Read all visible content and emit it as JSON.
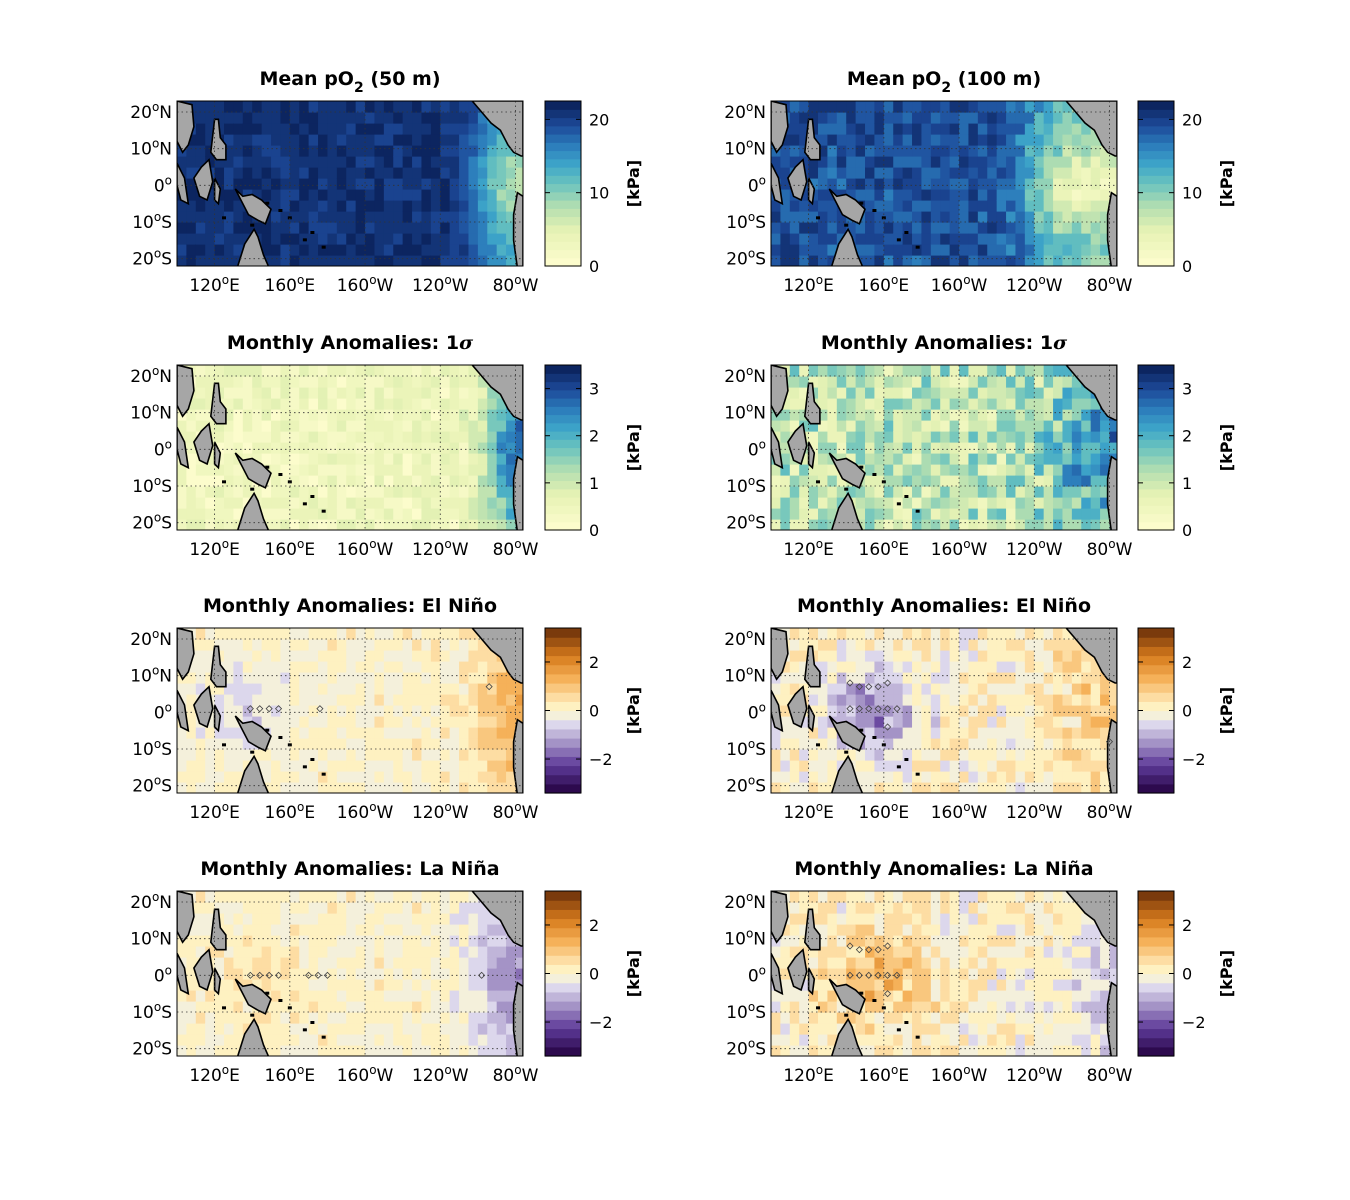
{
  "figure": {
    "titles": {
      "mean50": "Mean pO",
      "mean50_sub": "2",
      "mean50_tail": " (50 m)",
      "mean100": "Mean pO",
      "mean100_sub": "2",
      "mean100_tail": " (100 m)",
      "sigma": "Monthly Anomalies: 1",
      "sigma_symbol": "σ",
      "elnino": "Monthly Anomalies: El Niño",
      "lanina": "Monthly Anomalies: La Niña"
    },
    "unit_label": "[kPa]",
    "lat_ticks": [
      {
        "value": 20,
        "label": "20",
        "sup": "o",
        "hem": "N"
      },
      {
        "value": 10,
        "label": "10",
        "sup": "o",
        "hem": "N"
      },
      {
        "value": 0,
        "label": "0",
        "sup": "o",
        "hem": ""
      },
      {
        "value": -10,
        "label": "10",
        "sup": "o",
        "hem": "S"
      },
      {
        "value": -20,
        "label": "20",
        "sup": "o",
        "hem": "S"
      }
    ],
    "lon_ticks": [
      {
        "value": 120,
        "label": "120",
        "sup": "o",
        "hem": "E"
      },
      {
        "value": 160,
        "label": "160",
        "sup": "o",
        "hem": "E"
      },
      {
        "value": 200,
        "label": "160",
        "sup": "o",
        "hem": "W"
      },
      {
        "value": 240,
        "label": "120",
        "sup": "o",
        "hem": "W"
      },
      {
        "value": 280,
        "label": "80",
        "sup": "o",
        "hem": "W"
      }
    ]
  },
  "chart_data": [
    {
      "id": "mean50",
      "type": "heatmap",
      "title": "Mean pO2 (50 m)",
      "colorbar": {
        "label": "[kPa]",
        "ticks": [
          0,
          10,
          20
        ],
        "range": [
          0,
          22.5
        ],
        "palette": "sequential"
      },
      "xlim": [
        100,
        284
      ],
      "ylim": [
        -22,
        23
      ],
      "field": {
        "base": 21,
        "east_value": 8,
        "east_lon": 262,
        "east_width": 16,
        "equatorial_lat_width": 12,
        "noise": 1.2
      },
      "stipple": []
    },
    {
      "id": "mean100",
      "type": "heatmap",
      "title": "Mean pO2 (100 m)",
      "colorbar": {
        "label": "[kPa]",
        "ticks": [
          0,
          10,
          20
        ],
        "range": [
          0,
          22.5
        ],
        "palette": "sequential"
      },
      "xlim": [
        100,
        284
      ],
      "ylim": [
        -22,
        23
      ],
      "field": {
        "base": 19,
        "east_value": 3,
        "east_lon": 240,
        "east_width": 22,
        "equatorial_lat_width": 10,
        "noise": 2.2
      },
      "stipple": []
    },
    {
      "id": "sigma50",
      "type": "heatmap",
      "title": "Monthly Anomalies: 1σ",
      "colorbar": {
        "label": "[kPa]",
        "ticks": [
          0,
          1,
          2,
          3
        ],
        "range": [
          0,
          3.5
        ],
        "palette": "sequential"
      },
      "xlim": [
        100,
        284
      ],
      "ylim": [
        -22,
        23
      ],
      "field": {
        "base": 0.45,
        "east_value": 3.0,
        "east_lon": 268,
        "east_width": 16,
        "equatorial_lat_width": 12,
        "noise": 0.35
      },
      "stipple": []
    },
    {
      "id": "sigma100",
      "type": "heatmap",
      "title": "Monthly Anomalies: 1σ",
      "colorbar": {
        "label": "[kPa]",
        "ticks": [
          0,
          1,
          2,
          3
        ],
        "range": [
          0,
          3.5
        ],
        "palette": "sequential"
      },
      "xlim": [
        100,
        284
      ],
      "ylim": [
        -22,
        23
      ],
      "field": {
        "base": 1.1,
        "east_value": 2.6,
        "east_lon": 255,
        "east_width": 30,
        "equatorial_lat_width": 12,
        "noise": 0.7
      },
      "stipple": []
    },
    {
      "id": "elnino50",
      "type": "heatmap",
      "title": "Monthly Anomalies: El Niño",
      "colorbar": {
        "label": "[kPa]",
        "ticks": [
          -2,
          0,
          2
        ],
        "range": [
          -3.4,
          3.4
        ],
        "palette": "diverging"
      },
      "xlim": [
        100,
        284
      ],
      "ylim": [
        -22,
        23
      ],
      "field": {
        "base": 0.05,
        "east_value": 1.6,
        "east_lon": 265,
        "east_width": 20,
        "west_value": -0.5,
        "west_lon": 140,
        "equatorial_lat_width": 12,
        "noise": 0.35
      },
      "stipple": [
        [
          139,
          1
        ],
        [
          144,
          1
        ],
        [
          149,
          1
        ],
        [
          154,
          1
        ],
        [
          176,
          1
        ],
        [
          266,
          7
        ]
      ]
    },
    {
      "id": "elnino100",
      "type": "heatmap",
      "title": "Monthly Anomalies: El Niño",
      "colorbar": {
        "label": "[kPa]",
        "ticks": [
          -2,
          0,
          2
        ],
        "range": [
          -3.4,
          3.4
        ],
        "palette": "diverging"
      },
      "xlim": [
        100,
        284
      ],
      "ylim": [
        -22,
        23
      ],
      "field": {
        "base": 0.1,
        "east_value": 1.0,
        "east_lon": 262,
        "east_width": 25,
        "west_value": -1.4,
        "west_lon": 155,
        "equatorial_lat_width": 12,
        "noise": 0.6
      },
      "stipple": [
        [
          142,
          8
        ],
        [
          147,
          7
        ],
        [
          152,
          7
        ],
        [
          157,
          7
        ],
        [
          162,
          8
        ],
        [
          142,
          1
        ],
        [
          147,
          1
        ],
        [
          152,
          1
        ],
        [
          157,
          1
        ],
        [
          162,
          1
        ],
        [
          167,
          1
        ],
        [
          162,
          -4
        ],
        [
          280,
          -8
        ]
      ]
    },
    {
      "id": "lanina50",
      "type": "heatmap",
      "title": "Monthly Anomalies: La Niña",
      "colorbar": {
        "label": "[kPa]",
        "ticks": [
          -2,
          0,
          2
        ],
        "range": [
          -3.4,
          3.4
        ],
        "palette": "diverging"
      },
      "xlim": [
        100,
        284
      ],
      "ylim": [
        -22,
        23
      ],
      "field": {
        "base": 0.05,
        "east_value": -1.5,
        "east_lon": 262,
        "east_width": 22,
        "west_value": 0.4,
        "west_lon": 140,
        "equatorial_lat_width": 12,
        "noise": 0.35
      },
      "stipple": [
        [
          139,
          0
        ],
        [
          144,
          0
        ],
        [
          149,
          0
        ],
        [
          154,
          0
        ],
        [
          170,
          0
        ],
        [
          175,
          0
        ],
        [
          180,
          0
        ],
        [
          262,
          0
        ]
      ]
    },
    {
      "id": "lanina100",
      "type": "heatmap",
      "title": "Monthly Anomalies: La Niña",
      "colorbar": {
        "label": "[kPa]",
        "ticks": [
          -2,
          0,
          2
        ],
        "range": [
          -3.4,
          3.4
        ],
        "palette": "diverging"
      },
      "xlim": [
        100,
        284
      ],
      "ylim": [
        -22,
        23
      ],
      "field": {
        "base": 0.1,
        "east_value": -0.8,
        "east_lon": 260,
        "east_width": 25,
        "west_value": 1.2,
        "west_lon": 155,
        "equatorial_lat_width": 12,
        "noise": 0.6
      },
      "stipple": [
        [
          142,
          8
        ],
        [
          147,
          7
        ],
        [
          152,
          7
        ],
        [
          157,
          7
        ],
        [
          162,
          8
        ],
        [
          142,
          0
        ],
        [
          147,
          0
        ],
        [
          152,
          0
        ],
        [
          157,
          0
        ],
        [
          162,
          0
        ],
        [
          167,
          0
        ],
        [
          162,
          -5
        ]
      ]
    }
  ]
}
